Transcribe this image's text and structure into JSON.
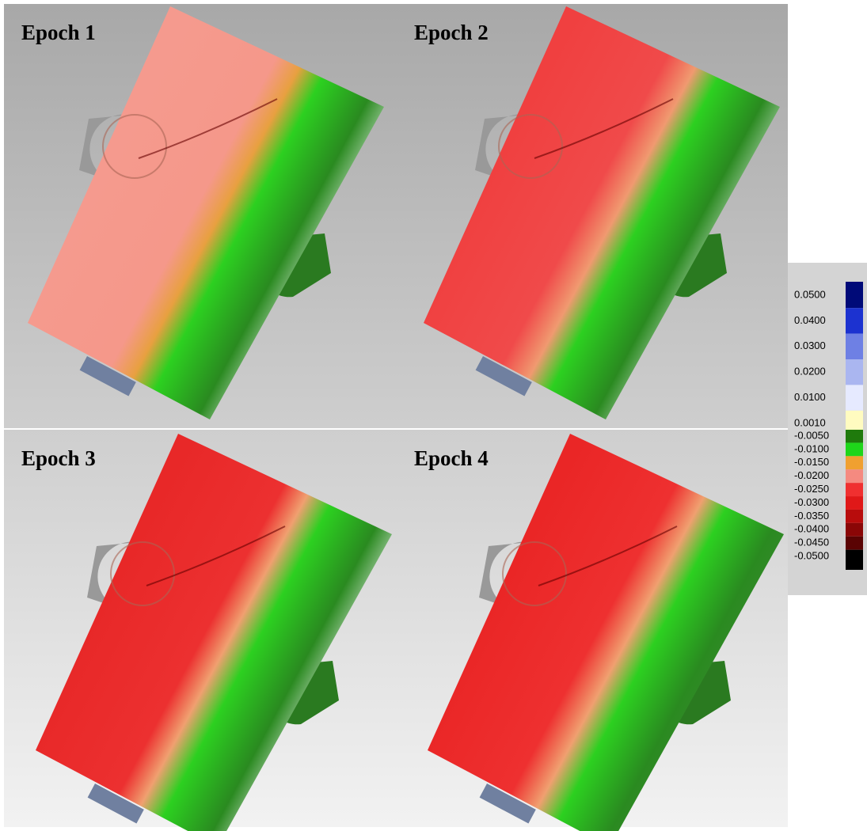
{
  "panels": [
    {
      "title": "Epoch 1"
    },
    {
      "title": "Epoch 2"
    },
    {
      "title": "Epoch 3"
    },
    {
      "title": "Epoch 4"
    }
  ],
  "legend": {
    "entries": [
      {
        "label": "0.0500",
        "color": "#000a78"
      },
      {
        "label": "0.0400",
        "color": "#1c32d0"
      },
      {
        "label": "0.0300",
        "color": "#6e80e4"
      },
      {
        "label": "0.0200",
        "color": "#aab6f0"
      },
      {
        "label": "0.0100",
        "color": "#e6eaff"
      },
      {
        "label": "0.0010",
        "color": "#fffbc0"
      },
      {
        "label": "-0.0050",
        "color": "#1f7a0c"
      },
      {
        "label": "-0.0100",
        "color": "#1ed61a"
      },
      {
        "label": "-0.0150",
        "color": "#f0a030"
      },
      {
        "label": "-0.0200",
        "color": "#f58a80"
      },
      {
        "label": "-0.0250",
        "color": "#f03030"
      },
      {
        "label": "-0.0300",
        "color": "#e01818"
      },
      {
        "label": "-0.0350",
        "color": "#b80c0c"
      },
      {
        "label": "-0.0400",
        "color": "#8a0606"
      },
      {
        "label": "-0.0450",
        "color": "#5a0303"
      },
      {
        "label": "-0.0500",
        "color": "#000000"
      }
    ]
  }
}
